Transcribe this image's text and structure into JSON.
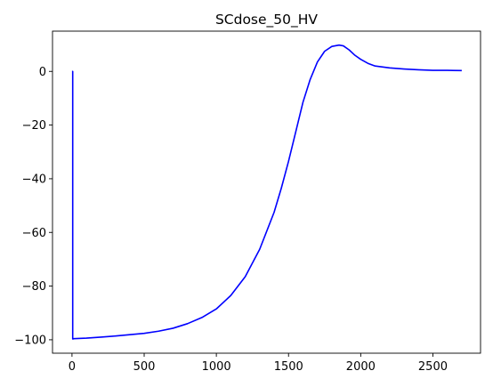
{
  "chart_data": {
    "type": "line",
    "title": "SCdose_50_HV",
    "xlabel": "",
    "ylabel": "",
    "xlim": [
      -135,
      2830
    ],
    "ylim": [
      -105,
      15
    ],
    "x_ticks": [
      0,
      500,
      1000,
      1500,
      2000,
      2500
    ],
    "y_ticks": [
      0,
      -20,
      -40,
      -60,
      -80,
      -100
    ],
    "grid": false,
    "legend": null,
    "series": [
      {
        "color": "#0000ff",
        "x": [
          0,
          5,
          5,
          8,
          10,
          100,
          200,
          300,
          400,
          500,
          600,
          700,
          800,
          900,
          1000,
          1100,
          1200,
          1300,
          1400,
          1450,
          1500,
          1550,
          1600,
          1650,
          1700,
          1750,
          1800,
          1850,
          1880,
          1920,
          1960,
          2000,
          2050,
          2100,
          2200,
          2300,
          2400,
          2500,
          2600,
          2700
        ],
        "y": [
          0,
          0,
          -99.7,
          -99.7,
          -99.6,
          -99.4,
          -99.0,
          -98.6,
          -98.1,
          -97.6,
          -96.8,
          -95.7,
          -94.0,
          -91.7,
          -88.5,
          -83.5,
          -76.5,
          -66.3,
          -52.5,
          -43.5,
          -33.5,
          -22.5,
          -11.5,
          -3.0,
          3.5,
          7.5,
          9.3,
          9.8,
          9.5,
          8.0,
          6.0,
          4.5,
          3.0,
          2.0,
          1.3,
          0.9,
          0.6,
          0.4,
          0.4,
          0.3
        ]
      }
    ]
  }
}
